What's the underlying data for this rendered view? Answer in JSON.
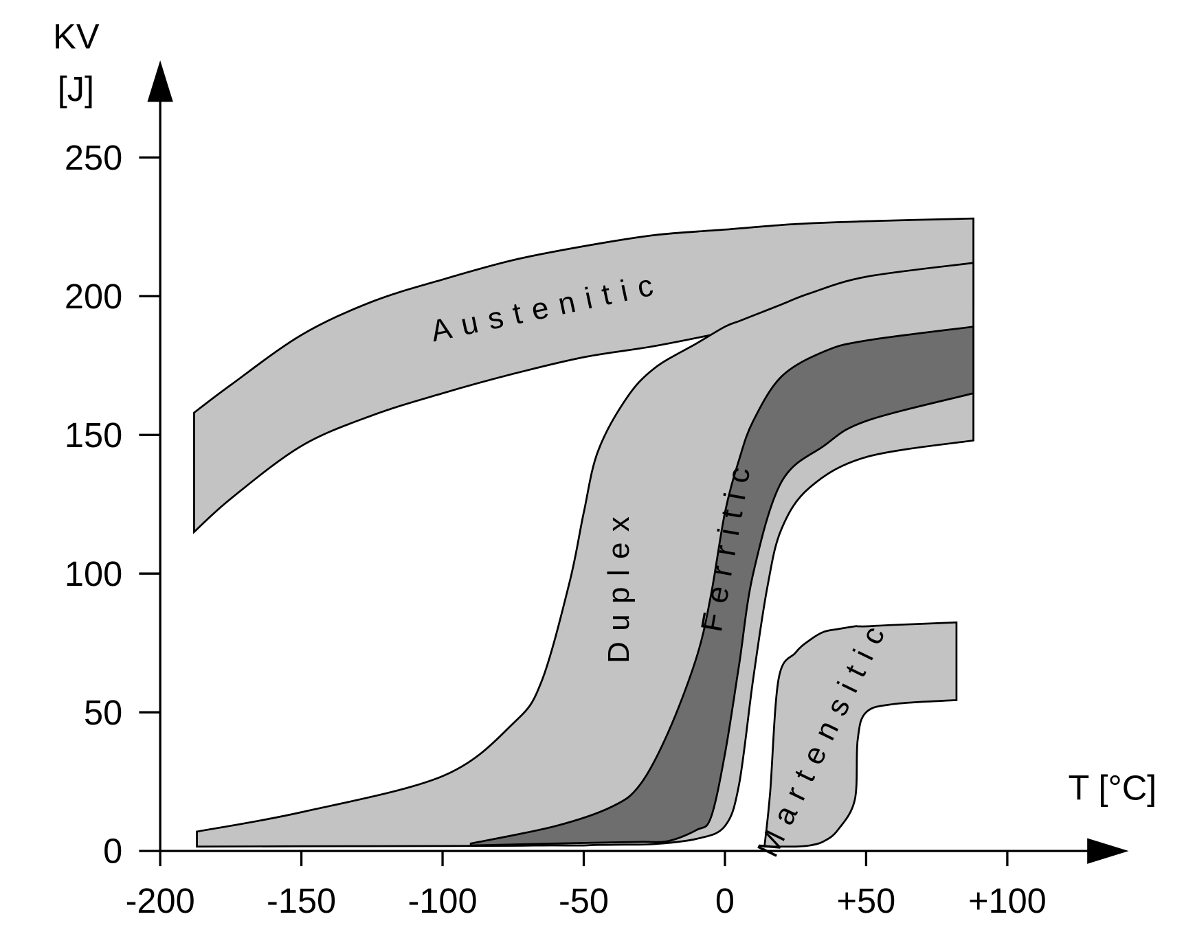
{
  "chart_data": {
    "type": "band",
    "x_label": "T [°C]",
    "y_label": [
      "KV",
      "[J]"
    ],
    "xlim": [
      -200,
      143
    ],
    "ylim": [
      0,
      285
    ],
    "xticks": [
      -200,
      -150,
      -100,
      -50,
      0,
      {
        "value": 50,
        "label": "+50"
      },
      {
        "value": 100,
        "label": "+100"
      }
    ],
    "yticks": [
      0,
      50,
      100,
      150,
      200,
      250
    ],
    "series": [
      {
        "name": "Austenitic",
        "color": "#c3c3c3",
        "x": [
          -188,
          -175,
          -150,
          -125,
          -100,
          -75,
          -50,
          -25,
          0,
          25,
          50,
          88
        ],
        "upper": [
          158,
          168,
          186,
          198,
          206,
          213,
          218,
          222,
          224,
          226,
          227,
          228
        ],
        "lower": [
          115,
          127,
          146,
          157,
          165,
          172,
          178,
          182,
          187,
          192,
          194,
          196
        ]
      },
      {
        "name": "Duplex",
        "color": "#c3c3c3",
        "x": [
          -187,
          -150,
          -100,
          -75,
          -65,
          -55,
          -50,
          -45,
          -35,
          -25,
          -10,
          0,
          5,
          10,
          15,
          20,
          30,
          50,
          88
        ],
        "upper": [
          7,
          14,
          27,
          46,
          61,
          97,
          122,
          144,
          163,
          174,
          183,
          189,
          191,
          193,
          195,
          197,
          201,
          207,
          212
        ],
        "lower": [
          1.6,
          1.7,
          1.8,
          1.9,
          2,
          2,
          2,
          2.2,
          2.3,
          2.5,
          4.4,
          9,
          24,
          62,
          95,
          116,
          131,
          142,
          148
        ]
      },
      {
        "name": "Ferritic",
        "color": "#6e6e6e",
        "x": [
          -90,
          -60,
          -40,
          -30,
          -20,
          -10,
          -5,
          0,
          5,
          10,
          20,
          35,
          50,
          88
        ],
        "upper": [
          2.7,
          9,
          16,
          24,
          43,
          70,
          92,
          122,
          141,
          155,
          171,
          180,
          184,
          189
        ],
        "lower": [
          2,
          2.7,
          3.1,
          3.3,
          3.6,
          7.6,
          12,
          35,
          67,
          100,
          133,
          146,
          155,
          165
        ]
      },
      {
        "name": "Martensitic",
        "color": "#c3c3c3",
        "x": [
          14,
          16,
          19,
          25,
          30,
          35,
          40,
          46,
          47,
          50,
          60,
          82
        ],
        "upper": [
          1.6,
          21,
          62,
          71.5,
          76,
          79,
          80,
          81,
          81,
          81,
          81.5,
          82.4
        ],
        "lower": [
          1.6,
          1.6,
          1.6,
          1.6,
          2,
          3.5,
          7.6,
          18.5,
          40,
          50,
          53,
          54.4
        ]
      }
    ]
  }
}
